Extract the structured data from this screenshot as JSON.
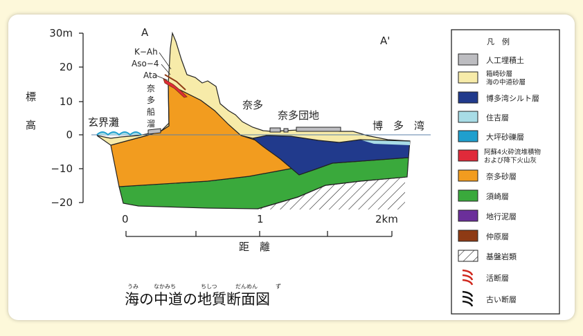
{
  "figure": {
    "title": "海の中道の地質断面図",
    "ruby": [
      "うみ",
      "なかみち",
      "ちしつ",
      "だんめん",
      "ず"
    ],
    "section_start": "A",
    "section_end": "A'",
    "axis_title_top": "標",
    "axis_title_bottom": "高",
    "y_ticks": [
      "30m",
      "20",
      "10",
      "0",
      "−10",
      "−20"
    ],
    "x_ticks": [
      "0",
      "1",
      "2km"
    ],
    "x_title": "距　離",
    "labels": {
      "genkainada": "玄界灘",
      "nata": "奈多",
      "nata_danchi": "奈多団地",
      "hakata_bay": "博　多　湾",
      "k_ah": "K−Ah",
      "aso4": "Aso−4",
      "ata": "Ata",
      "nata_funadamari": [
        "奈",
        "多",
        "船",
        "溜"
      ]
    }
  },
  "legend": {
    "title": "凡　例",
    "items": [
      {
        "name": "legend-artificial-fill",
        "label": "人工埋積土",
        "color": "#bdbdc1"
      },
      {
        "name": "legend-hakozaki-sand",
        "label": "箱崎砂層",
        "label2": "海の中道砂層",
        "color": "#f7eba9"
      },
      {
        "name": "legend-hakata-bay-silt",
        "label": "博多湾シルト層",
        "color": "#213a8c"
      },
      {
        "name": "legend-sumiyoshi",
        "label": "住吉層",
        "color": "#a8dce6"
      },
      {
        "name": "legend-ohtsubo-gravel",
        "label": "大坪砂礫層",
        "color": "#1f9fce"
      },
      {
        "name": "legend-aso4-pyroclastic",
        "label": "阿蘇4火砕流堆積物",
        "label2": "および降下火山灰",
        "color": "#e02a3a"
      },
      {
        "name": "legend-nata-sand",
        "label": "奈多砂層",
        "color": "#f29c1f"
      },
      {
        "name": "legend-suzaki",
        "label": "須崎層",
        "color": "#3aa93c"
      },
      {
        "name": "legend-jigyo-mud",
        "label": "地行泥層",
        "color": "#6b2f9a"
      },
      {
        "name": "legend-nakabaru",
        "label": "仲原層",
        "color": "#8e3a14"
      },
      {
        "name": "legend-basement",
        "label": "基盤岩類",
        "color": "#ffffff"
      },
      {
        "name": "legend-active-fault",
        "label": "活断層",
        "color": "#d0281e"
      },
      {
        "name": "legend-old-fault",
        "label": "古い断層",
        "color": "#111111"
      }
    ]
  }
}
